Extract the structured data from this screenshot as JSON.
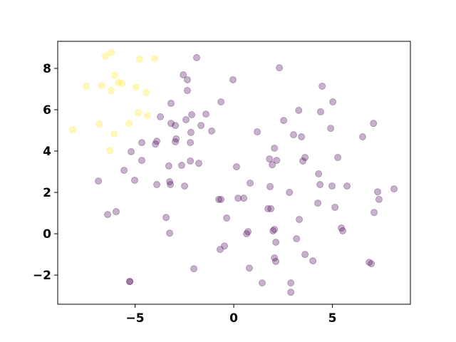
{
  "chart_data": {
    "type": "scatter",
    "grid": false,
    "xlim": [
      -8.92,
      8.95
    ],
    "ylim": [
      -3.41,
      9.31
    ],
    "xticks": [
      {
        "value": -5,
        "label": "−5"
      },
      0,
      5
    ],
    "yticks": [
      {
        "value": -2,
        "label": "−2"
      },
      0,
      2,
      4,
      6,
      8
    ],
    "series": [
      {
        "color": "#fde725",
        "x": [
          -8.16,
          -7.47,
          -6.68,
          -6.82,
          -6.5,
          -6.21,
          -6.03,
          -5.85,
          -5.67,
          -6.21,
          -6.28,
          -6.06,
          -5.31,
          -4.95,
          -4.84,
          -4.77,
          -4.44,
          -4.37,
          -4.01
        ],
        "y": [
          5.03,
          7.14,
          7.17,
          5.31,
          8.59,
          8.76,
          7.66,
          7.31,
          7.28,
          6.93,
          4.03,
          4.83,
          5.34,
          7.1,
          5.86,
          8.45,
          6.83,
          5.72,
          8.48
        ]
      },
      {
        "color": "#440154",
        "x": [
          -6.86,
          -6.39,
          -5.96,
          -5.56,
          -5.2,
          -5.02,
          -4.66,
          -4.66,
          -3.97,
          -3.9,
          -3.9,
          -3.72,
          -3.29,
          -3.18,
          -3.18,
          -3.25,
          -3.21,
          -3.25,
          -3.43,
          -2.96,
          -2.92,
          -2.96,
          -2.56,
          -2.35,
          -2.35,
          -2.42,
          -2.49,
          -2.64,
          -2.2,
          -2.2,
          -2.13,
          -2.17,
          -1.77,
          -1.88,
          -1.41,
          -1.66,
          -1.12,
          -0.65,
          -2.02,
          -5.27,
          -5.27,
          -0.65,
          -0.76,
          -0.69,
          -0.47,
          -0.36,
          -0.04,
          0.14,
          0.22,
          0.51,
          0.65,
          0.72,
          0.83,
          0.79,
          1.19,
          1.44,
          1.73,
          1.81,
          1.84,
          1.88,
          1.95,
          2.06,
          1.99,
          2.06,
          2.13,
          2.06,
          2.13,
          2.31,
          2.17,
          2.53,
          2.82,
          2.89,
          2.89,
          3.03,
          3.29,
          3.32,
          3.18,
          3.43,
          3.5,
          3.61,
          3.61,
          4.01,
          4.26,
          4.3,
          4.37,
          4.4,
          4.48,
          4.91,
          4.98,
          5.02,
          5.13,
          5.27,
          5.45,
          5.52,
          5.74,
          6.53,
          6.86,
          6.97,
          7.08,
          7.11,
          7.29,
          7.36,
          8.12
        ],
        "y": [
          2.55,
          0.93,
          1.07,
          3.07,
          3.97,
          2.59,
          3.55,
          4.41,
          4.34,
          4.48,
          2.38,
          5.66,
          3.28,
          6.31,
          5.34,
          2.52,
          2.38,
          0.03,
          0.79,
          4.45,
          4.59,
          5.24,
          7.69,
          7.45,
          6.93,
          5.52,
          2.31,
          3.31,
          4.41,
          3.52,
          5.76,
          4.9,
          3.41,
          8.52,
          5.79,
          5.24,
          4.97,
          6.38,
          -1.69,
          -2.31,
          -2.31,
          1.66,
          1.66,
          -0.76,
          -0.59,
          0.76,
          7.45,
          3.24,
          1.72,
          1.72,
          0.0,
          0.1,
          2.45,
          -1.66,
          4.93,
          -2.38,
          1.21,
          3.62,
          2.28,
          1.21,
          3.34,
          4.14,
          0.14,
          0.21,
          -0.41,
          -1.17,
          -1.34,
          8.03,
          3.55,
          5.48,
          2.0,
          -2.83,
          -2.38,
          4.79,
          5.97,
          0.69,
          -0.24,
          4.69,
          3.52,
          3.69,
          -1.0,
          -1.31,
          1.48,
          2.9,
          2.38,
          5.9,
          7.14,
          5.1,
          2.31,
          6.38,
          1.28,
          3.69,
          0.28,
          0.14,
          2.31,
          4.69,
          -1.38,
          -1.45,
          5.34,
          1.03,
          2.03,
          1.66,
          2.17
        ]
      }
    ]
  }
}
